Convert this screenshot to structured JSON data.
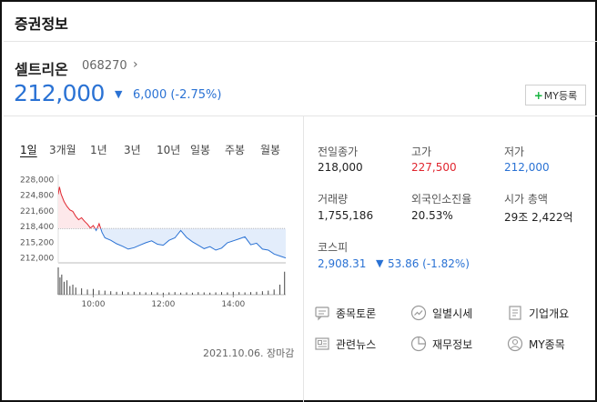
{
  "header": {
    "title": "증권정보"
  },
  "stock": {
    "name": "셀트리온",
    "code": "068270",
    "code_arrow": "›",
    "price": "212,000",
    "change_arrow": "▼",
    "change": "6,000 (-2.75%)",
    "my_button": {
      "plus": "+",
      "label": "MY등록"
    }
  },
  "tabs": [
    "1일",
    "3개월",
    "1년",
    "3년",
    "10년",
    "일봉",
    "주봉",
    "월봉"
  ],
  "chart_data": {
    "type": "line",
    "title": "",
    "xlabel": "",
    "ylabel": "",
    "y_tick_labels": [
      "228,000",
      "224,800",
      "221,600",
      "218,400",
      "215,200",
      "212,000"
    ],
    "y_ticks": [
      228000,
      224800,
      221600,
      218400,
      215200,
      212000
    ],
    "ylim": [
      211000,
      229000
    ],
    "x_tick_labels": [
      "10:00",
      "12:00",
      "14:00"
    ],
    "x_ticks": [
      "10:00",
      "12:00",
      "14:00"
    ],
    "xlim": [
      "09:00",
      "15:30"
    ],
    "reference_line": 218000,
    "colors": {
      "above": "#e0262f",
      "below": "#2a72d4",
      "above_fill": "#fde8ea",
      "below_fill": "#e3edfb"
    },
    "series": [
      {
        "x": [
          "09:00",
          "09:02",
          "09:05",
          "09:10",
          "09:15",
          "09:20",
          "09:25",
          "09:30",
          "09:35",
          "09:40",
          "09:45",
          "09:50",
          "09:55",
          "10:00",
          "10:05",
          "10:10",
          "10:15",
          "10:20",
          "10:30",
          "10:40",
          "10:50",
          "11:00",
          "11:10",
          "11:20",
          "11:30",
          "11:40",
          "11:50",
          "12:00",
          "12:10",
          "12:20",
          "12:30",
          "12:40",
          "12:50",
          "13:00",
          "13:10",
          "13:20",
          "13:30",
          "13:40",
          "13:50",
          "14:00",
          "14:10",
          "14:20",
          "14:30",
          "14:40",
          "14:50",
          "15:00",
          "15:10",
          "15:20",
          "15:30"
        ],
        "values": [
          225000,
          226500,
          225000,
          223500,
          222500,
          221800,
          221500,
          220500,
          219800,
          220200,
          219500,
          218900,
          218100,
          218600,
          217600,
          219000,
          217200,
          216100,
          215600,
          214900,
          214400,
          213800,
          214100,
          214600,
          215100,
          215500,
          214800,
          214600,
          215600,
          216100,
          217600,
          216200,
          215300,
          214600,
          213900,
          214300,
          213600,
          214000,
          215100,
          215500,
          215900,
          216300,
          214700,
          215000,
          213800,
          213600,
          212800,
          212400,
          212000
        ]
      }
    ],
    "volume": {
      "x": [
        "09:00",
        "09:03",
        "09:06",
        "09:10",
        "09:15",
        "09:20",
        "09:25",
        "09:30",
        "09:40",
        "09:50",
        "10:00",
        "10:10",
        "10:20",
        "10:30",
        "10:40",
        "10:50",
        "11:00",
        "11:10",
        "11:20",
        "11:30",
        "11:40",
        "11:50",
        "12:00",
        "12:10",
        "12:20",
        "12:30",
        "12:40",
        "12:50",
        "13:00",
        "13:10",
        "13:20",
        "13:30",
        "13:40",
        "13:50",
        "14:00",
        "14:10",
        "14:20",
        "14:30",
        "14:40",
        "14:50",
        "15:00",
        "15:10",
        "15:20",
        "15:28"
      ],
      "values": [
        95,
        60,
        70,
        45,
        50,
        30,
        35,
        25,
        22,
        18,
        20,
        15,
        14,
        12,
        10,
        11,
        9,
        10,
        9,
        8,
        9,
        8,
        7,
        8,
        9,
        7,
        8,
        7,
        9,
        8,
        7,
        8,
        9,
        8,
        10,
        9,
        8,
        9,
        10,
        12,
        14,
        18,
        35,
        80
      ]
    }
  },
  "footer": {
    "date": "2021.10.06. 장마감"
  },
  "info": {
    "prev_close": {
      "label": "전일종가",
      "value": "218,000"
    },
    "high": {
      "label": "고가",
      "value": "227,500"
    },
    "low": {
      "label": "저가",
      "value": "212,000"
    },
    "volume": {
      "label": "거래량",
      "value": "1,755,186"
    },
    "foreign": {
      "label": "외국인소진율",
      "value": "20.53%"
    },
    "market_cap": {
      "label": "시가 총액",
      "value": "29조 2,422억"
    },
    "kospi": {
      "label": "코스피",
      "value": "2,908.31",
      "arrow": "▼",
      "change": "53.86 (-1.82%)"
    }
  },
  "quick_links": {
    "discussion": {
      "label": "종목토론",
      "icon": "chat-icon"
    },
    "daily_price": {
      "label": "일별시세",
      "icon": "trend-icon"
    },
    "company": {
      "label": "기업개요",
      "icon": "document-icon"
    },
    "news": {
      "label": "관련뉴스",
      "icon": "news-icon"
    },
    "financial": {
      "label": "재무정보",
      "icon": "pie-icon"
    },
    "my_stock": {
      "label": "MY종목",
      "icon": "user-icon"
    }
  }
}
